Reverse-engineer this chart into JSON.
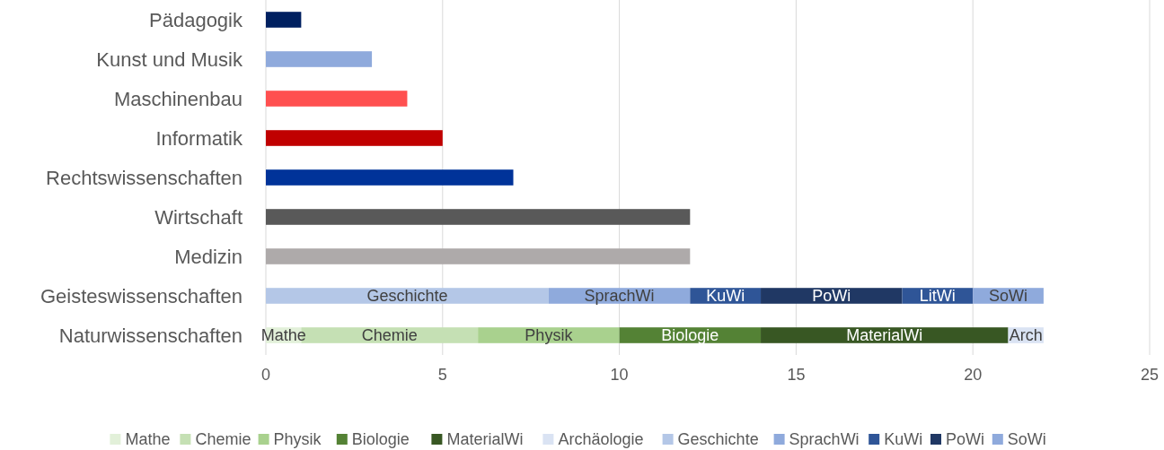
{
  "chart_data": {
    "type": "bar",
    "orientation": "horizontal",
    "stacked": true,
    "categories": [
      "Pädagogik",
      "Kunst und Musik",
      "Maschinenbau",
      "Informatik",
      "Rechtswissenschaften",
      "Wirtschaft",
      "Medizin",
      "Geisteswissenschaften",
      "Naturwissenschaften"
    ],
    "series": [
      {
        "colors": [
          "#002060",
          "#8faadc",
          "#ff5050",
          "#c00000",
          "#003399",
          "#595959",
          "#aeaaaa",
          null,
          null
        ],
        "values": [
          1,
          3,
          4,
          5,
          7,
          12,
          12,
          null,
          null
        ]
      },
      {
        "name": "Mathe",
        "color": "#e2f0d9",
        "values": [
          null,
          null,
          null,
          null,
          null,
          null,
          null,
          null,
          1
        ],
        "value_labels": [
          null,
          null,
          null,
          null,
          null,
          null,
          null,
          null,
          "Mathe"
        ]
      },
      {
        "name": "Chemie",
        "color": "#c5e0b4",
        "values": [
          null,
          null,
          null,
          null,
          null,
          null,
          null,
          null,
          5
        ],
        "value_labels": [
          null,
          null,
          null,
          null,
          null,
          null,
          null,
          null,
          "Chemie"
        ]
      },
      {
        "name": "Physik",
        "color": "#a9d18e",
        "values": [
          null,
          null,
          null,
          null,
          null,
          null,
          null,
          null,
          4
        ],
        "value_labels": [
          null,
          null,
          null,
          null,
          null,
          null,
          null,
          null,
          "Physik"
        ]
      },
      {
        "name": "Biologie",
        "color": "#548235",
        "values": [
          null,
          null,
          null,
          null,
          null,
          null,
          null,
          null,
          4
        ],
        "value_labels": [
          null,
          null,
          null,
          null,
          null,
          null,
          null,
          null,
          "Biologie"
        ]
      },
      {
        "name": "MaterialWi",
        "color": "#385723",
        "values": [
          null,
          null,
          null,
          null,
          null,
          null,
          null,
          null,
          7
        ],
        "value_labels": [
          null,
          null,
          null,
          null,
          null,
          null,
          null,
          null,
          "MaterialWi"
        ]
      },
      {
        "name": "Archäologie",
        "color": "#dae3f3",
        "values": [
          null,
          null,
          null,
          null,
          null,
          null,
          null,
          null,
          1
        ],
        "value_labels": [
          null,
          null,
          null,
          null,
          null,
          null,
          null,
          null,
          "Arch"
        ]
      },
      {
        "name": "Geschichte",
        "color": "#b4c7e7",
        "values": [
          null,
          null,
          null,
          null,
          null,
          null,
          null,
          8,
          null
        ],
        "value_labels": [
          null,
          null,
          null,
          null,
          null,
          null,
          null,
          "Geschichte",
          null
        ]
      },
      {
        "name": "SprachWi",
        "color": "#8faadc",
        "values": [
          null,
          null,
          null,
          null,
          null,
          null,
          null,
          4,
          null
        ],
        "value_labels": [
          null,
          null,
          null,
          null,
          null,
          null,
          null,
          "SprachWi",
          null
        ]
      },
      {
        "name": "KuWi",
        "color": "#2f5597",
        "values": [
          null,
          null,
          null,
          null,
          null,
          null,
          null,
          2,
          null
        ],
        "value_labels": [
          null,
          null,
          null,
          null,
          null,
          null,
          null,
          "KuWi",
          null
        ]
      },
      {
        "name": "PoWi",
        "color": "#203864",
        "values": [
          null,
          null,
          null,
          null,
          null,
          null,
          null,
          4,
          null
        ],
        "value_labels": [
          null,
          null,
          null,
          null,
          null,
          null,
          null,
          "PoWi",
          null
        ]
      },
      {
        "color": "#2f5597",
        "values": [
          null,
          null,
          null,
          null,
          null,
          null,
          null,
          2,
          null
        ],
        "value_labels": [
          null,
          null,
          null,
          null,
          null,
          null,
          null,
          "LitWi",
          null
        ]
      },
      {
        "name": "SoWi",
        "color": "#8faadc",
        "values": [
          null,
          null,
          null,
          null,
          null,
          null,
          null,
          2,
          null
        ],
        "value_labels": [
          null,
          null,
          null,
          null,
          null,
          null,
          null,
          "SoWi",
          null
        ]
      }
    ],
    "xlim": [
      0,
      25
    ],
    "xticks": [
      0,
      5,
      10,
      15,
      20,
      25
    ],
    "grid": "x",
    "legend": "bottom"
  }
}
